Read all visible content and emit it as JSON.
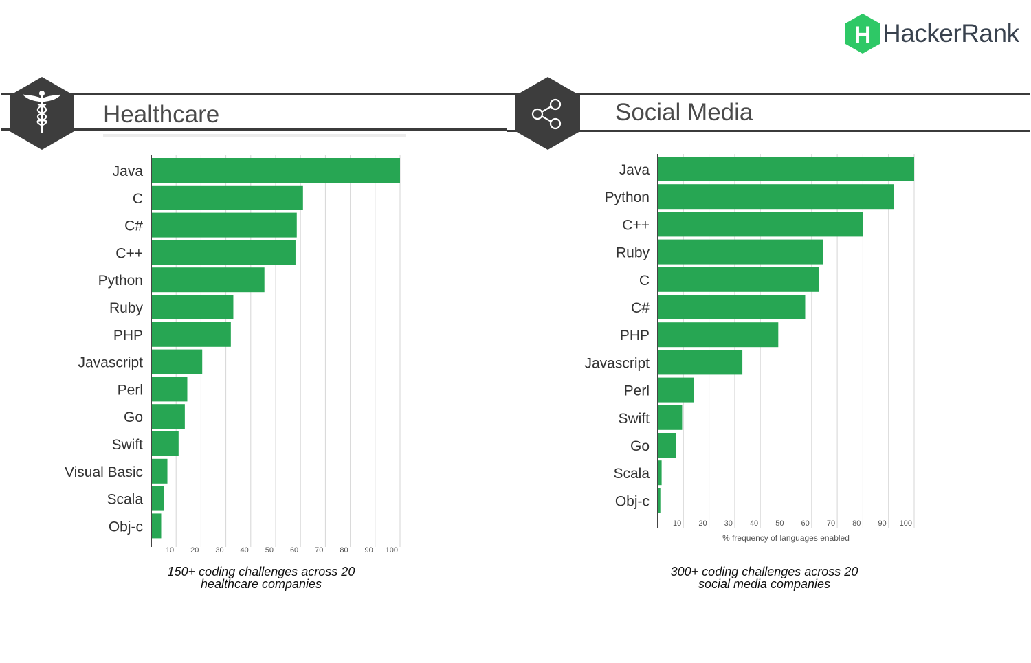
{
  "brand": {
    "name": "HackerRank",
    "logo_letter": "H",
    "logo_icon": "hackerrank-hexagon-icon",
    "accent": "#2ec866"
  },
  "colors": {
    "bar": "#27a653",
    "grid": "#d6d6d6",
    "axis": "#444444",
    "header_line": "#3b3b3b",
    "hex": "#3d3d3d"
  },
  "panels": [
    {
      "title": "Healthcare",
      "icon": "caduceus-icon",
      "caption_line1": "150+ coding  challenges across 20",
      "caption_line2": "healthcare companies"
    },
    {
      "title": "Social Media",
      "icon": "share-icon",
      "caption_line1": "300+ coding  challenges across 20",
      "caption_line2": "social media companies"
    }
  ],
  "chart_data": [
    {
      "type": "bar",
      "orientation": "horizontal",
      "title": "Healthcare",
      "categories": [
        "Java",
        "C",
        "C#",
        "C++",
        "Python",
        "Ruby",
        "PHP",
        "Javascript",
        "Perl",
        "Go",
        "Swift",
        "Visual Basic",
        "Scala",
        "Obj-c"
      ],
      "values": [
        100,
        61,
        58.5,
        58,
        45.5,
        33,
        32,
        20.5,
        14.5,
        13.5,
        11,
        6.5,
        5,
        4
      ],
      "xlim": [
        0,
        100
      ],
      "xticks": [
        10,
        20,
        30,
        40,
        50,
        60,
        70,
        80,
        90,
        100
      ],
      "xlabel": "",
      "grid": true
    },
    {
      "type": "bar",
      "orientation": "horizontal",
      "title": "Social Media",
      "categories": [
        "Java",
        "Python",
        "C++",
        "Ruby",
        "C",
        "C#",
        "PHP",
        "Javascript",
        "Perl",
        "Swift",
        "Go",
        "Scala",
        "Obj-c"
      ],
      "values": [
        100,
        92,
        80,
        64.5,
        63,
        57.5,
        47,
        33,
        14,
        9.5,
        7,
        1.5,
        1
      ],
      "xlim": [
        0,
        100
      ],
      "xticks": [
        10,
        20,
        30,
        40,
        50,
        60,
        70,
        80,
        90,
        100
      ],
      "xlabel": "% frequency of languages enabled",
      "grid": true
    }
  ]
}
